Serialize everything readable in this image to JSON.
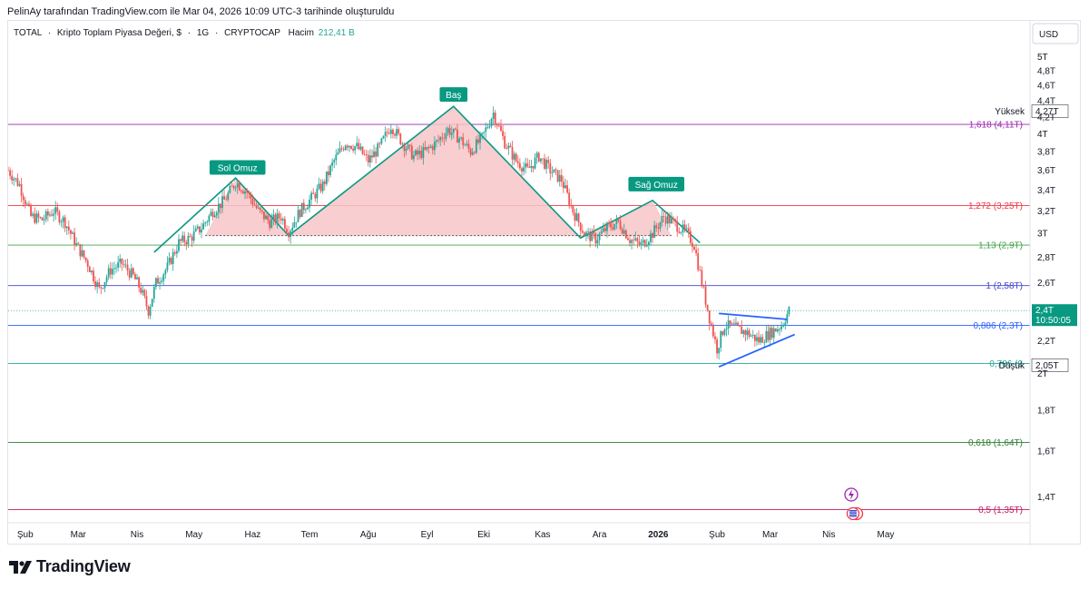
{
  "header": {
    "attribution": "PelinAy tarafından TradingView.com ile Mar 04, 2026 10:09 UTC-3 tarihinde oluşturuldu"
  },
  "legend": {
    "symbol": "TOTAL",
    "sep1": "·",
    "name": "Kripto Toplam Piyasa Değeri, $",
    "sep2": "·",
    "interval": "1G",
    "sep3": "·",
    "exchange": "CRYPTOCAP",
    "volume_label": "Hacim",
    "volume_value": "212,41 B"
  },
  "currency": "USD",
  "footer": {
    "brand": "TradingView"
  },
  "colors": {
    "up": "#26a69a",
    "down": "#ef5350",
    "pattern_line": "#089981",
    "fill": "#f7c5c8",
    "triangle": "#2962ff",
    "fib_purple": "#9c27b0",
    "fib_red": "#f23645",
    "fib_green": "#43a047",
    "fib_blue_dark": "#3f48cc",
    "fib_blue": "#2962ff",
    "fib_teal": "#26a69a"
  },
  "chart_data": {
    "type": "candlestick",
    "title": "TOTAL · Kripto Toplam Piyasa Değeri, $ · 1G · CRYPTOCAP",
    "y_scale": "log",
    "ylim": [
      1.3,
      5.4
    ],
    "xlim": [
      0,
      520
    ],
    "x_ticks": [
      {
        "label": "Şub",
        "t": 9
      },
      {
        "label": "Mar",
        "t": 37
      },
      {
        "label": "Nis",
        "t": 68
      },
      {
        "label": "May",
        "t": 98
      },
      {
        "label": "Haz",
        "t": 129
      },
      {
        "label": "Tem",
        "t": 159
      },
      {
        "label": "Ağu",
        "t": 190
      },
      {
        "label": "Eyl",
        "t": 221
      },
      {
        "label": "Eki",
        "t": 251
      },
      {
        "label": "Kas",
        "t": 282
      },
      {
        "label": "Ara",
        "t": 312
      },
      {
        "label": "2026",
        "t": 343,
        "bold": true
      },
      {
        "label": "Şub",
        "t": 374
      },
      {
        "label": "Mar",
        "t": 402
      },
      {
        "label": "Nis",
        "t": 433
      },
      {
        "label": "May",
        "t": 463
      }
    ],
    "y_ticks": [
      "5T",
      "4,8T",
      "4,6T",
      "4,4T",
      "4,2T",
      "4T",
      "3,8T",
      "3,6T",
      "3,4T",
      "3,2T",
      "3T",
      "2,8T",
      "2,6T",
      "2,2T",
      "2T",
      "1,8T",
      "1,6T",
      "1,4T"
    ],
    "y_tick_values": [
      5.0,
      4.8,
      4.6,
      4.4,
      4.2,
      4.0,
      3.8,
      3.6,
      3.4,
      3.2,
      3.0,
      2.8,
      2.6,
      2.2,
      2.0,
      1.8,
      1.6,
      1.4
    ],
    "fib_levels": [
      {
        "ratio": "1,618",
        "label": "1,618 (4,11T)",
        "value": 4.11,
        "color": "#9c27b0"
      },
      {
        "ratio": "1,272",
        "label": "1,272 (3,25T)",
        "value": 3.25,
        "color": "#f23645"
      },
      {
        "ratio": "1,13",
        "label": "1,13 (2,9T)",
        "value": 2.9,
        "color": "#43a047"
      },
      {
        "ratio": "1",
        "label": "1 (2,58T)",
        "value": 2.58,
        "color": "#3f48cc"
      },
      {
        "ratio": "0,886",
        "label": "0,886 (2,3T)",
        "value": 2.3,
        "color": "#2962ff"
      },
      {
        "ratio": "0,786",
        "label": "0,786 (2",
        "value": 2.06,
        "color": "#26a69a"
      },
      {
        "ratio": "0,618",
        "label": "0,618 (1,64T)",
        "value": 1.64,
        "color": "#2e7d32"
      },
      {
        "ratio": "0,5",
        "label": "0,5 (1,35T)",
        "value": 1.35,
        "color": "#c2185b"
      }
    ],
    "annotations": [
      {
        "text": "Sol Omuz",
        "t": 121,
        "v": 3.62
      },
      {
        "text": "Baş",
        "t": 235,
        "v": 4.47
      },
      {
        "text": "Sağ Omuz",
        "t": 342,
        "v": 3.45
      }
    ],
    "head_shoulders": [
      [
        77,
        2.84
      ],
      [
        120,
        3.52
      ],
      [
        148,
        2.98
      ],
      [
        235,
        4.33
      ],
      [
        302,
        2.96
      ],
      [
        340,
        3.3
      ],
      [
        365,
        2.92
      ]
    ],
    "neckline": {
      "t1": 104,
      "t2": 350,
      "v": 2.98
    },
    "triangle": {
      "upper": [
        [
          375,
          2.38
        ],
        [
          411,
          2.34
        ]
      ],
      "lower": [
        [
          375,
          2.04
        ],
        [
          415,
          2.24
        ]
      ]
    },
    "markers": [
      {
        "label": "Yüksek",
        "value_label": "4,27T",
        "value": 4.27
      },
      {
        "label": "Düşük",
        "value_label": "2,05T",
        "value": 2.05
      }
    ],
    "last_price": {
      "label": "2,4T",
      "countdown": "10:50:05",
      "value": 2.4
    },
    "price_path": [
      [
        0,
        3.6
      ],
      [
        6,
        3.45
      ],
      [
        12,
        3.15
      ],
      [
        18,
        3.12
      ],
      [
        24,
        3.2
      ],
      [
        30,
        3.1
      ],
      [
        36,
        2.9
      ],
      [
        42,
        2.75
      ],
      [
        48,
        2.55
      ],
      [
        54,
        2.7
      ],
      [
        60,
        2.75
      ],
      [
        66,
        2.65
      ],
      [
        70,
        2.55
      ],
      [
        74,
        2.4
      ],
      [
        78,
        2.6
      ],
      [
        84,
        2.72
      ],
      [
        90,
        2.92
      ],
      [
        96,
        2.96
      ],
      [
        102,
        3.05
      ],
      [
        108,
        3.2
      ],
      [
        114,
        3.3
      ],
      [
        120,
        3.48
      ],
      [
        126,
        3.38
      ],
      [
        132,
        3.2
      ],
      [
        138,
        3.1
      ],
      [
        144,
        3.15
      ],
      [
        148,
        3.02
      ],
      [
        154,
        3.2
      ],
      [
        160,
        3.32
      ],
      [
        166,
        3.45
      ],
      [
        172,
        3.7
      ],
      [
        178,
        3.9
      ],
      [
        184,
        3.85
      ],
      [
        190,
        3.7
      ],
      [
        196,
        3.85
      ],
      [
        202,
        4.1
      ],
      [
        208,
        3.9
      ],
      [
        214,
        3.75
      ],
      [
        220,
        3.8
      ],
      [
        226,
        3.9
      ],
      [
        232,
        4.05
      ],
      [
        238,
        3.95
      ],
      [
        244,
        3.8
      ],
      [
        250,
        3.95
      ],
      [
        256,
        4.25
      ],
      [
        262,
        3.9
      ],
      [
        268,
        3.7
      ],
      [
        274,
        3.6
      ],
      [
        280,
        3.75
      ],
      [
        286,
        3.6
      ],
      [
        292,
        3.5
      ],
      [
        298,
        3.2
      ],
      [
        304,
        3.0
      ],
      [
        310,
        2.95
      ],
      [
        316,
        3.05
      ],
      [
        322,
        3.1
      ],
      [
        328,
        2.95
      ],
      [
        334,
        2.9
      ],
      [
        340,
        3.0
      ],
      [
        346,
        3.15
      ],
      [
        352,
        3.08
      ],
      [
        358,
        3.0
      ],
      [
        362,
        2.9
      ],
      [
        366,
        2.6
      ],
      [
        370,
        2.35
      ],
      [
        374,
        2.15
      ],
      [
        378,
        2.3
      ],
      [
        384,
        2.28
      ],
      [
        390,
        2.25
      ],
      [
        396,
        2.2
      ],
      [
        402,
        2.25
      ],
      [
        408,
        2.3
      ],
      [
        412,
        2.4
      ]
    ]
  }
}
